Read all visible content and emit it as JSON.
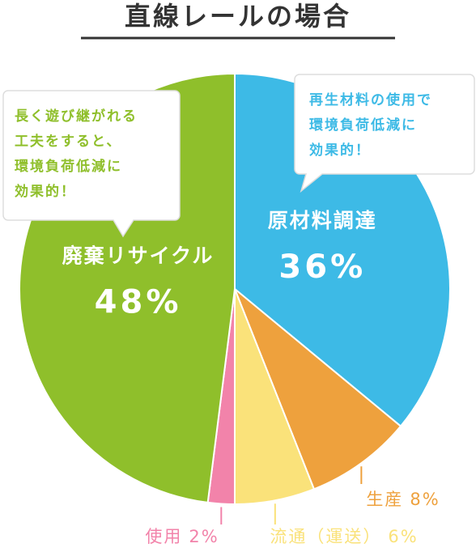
{
  "chart_data": {
    "type": "pie",
    "title": "直線レールの場合",
    "categories": [
      "原材料調達",
      "生産",
      "流通（運送）",
      "使用",
      "廃棄リサイクル"
    ],
    "values": [
      36,
      8,
      6,
      2,
      48
    ],
    "value_labels": [
      "36%",
      "8%",
      "6%",
      "2%",
      "48%"
    ],
    "colors": [
      "#3dbae6",
      "#eea13d",
      "#fae27a",
      "#f283aa",
      "#8fbf2b"
    ],
    "annotations": [
      {
        "lines": [
          "長く遊び継がれる",
          "工夫をすると、",
          "環境負荷低減に",
          "効果的！"
        ],
        "color": "#8fbf2b"
      },
      {
        "lines": [
          "再生材料の使用で",
          "環境負荷低減に",
          "効果的！"
        ],
        "color": "#3dbae6"
      }
    ]
  }
}
